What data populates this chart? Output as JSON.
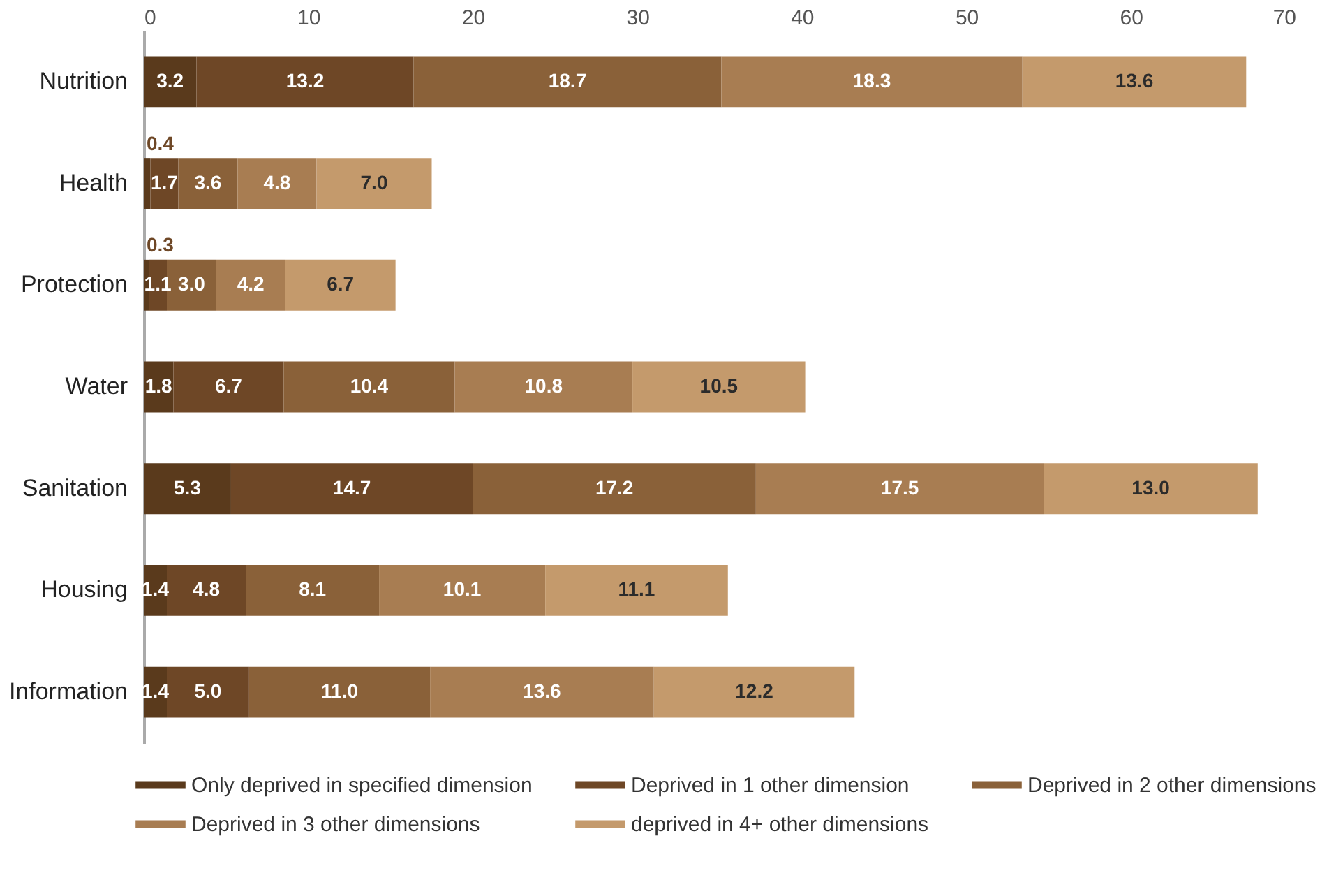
{
  "chart_data": {
    "type": "bar",
    "orientation": "horizontal",
    "stacked": true,
    "categories": [
      "Nutrition",
      "Health",
      "Protection",
      "Water",
      "Sanitation",
      "Housing",
      "Information"
    ],
    "series": [
      {
        "name": "Only deprived in specified dimension",
        "color": "#5a3a1c",
        "values": [
          3.2,
          0.4,
          0.3,
          1.8,
          5.3,
          1.4,
          1.4
        ],
        "value_labels": [
          "3.2",
          "0.4",
          "0.3",
          "1.8",
          "5.3",
          "1.4",
          "1.4"
        ]
      },
      {
        "name": "Deprived in 1 other dimension",
        "color": "#6e4726",
        "values": [
          13.2,
          1.7,
          1.1,
          6.7,
          14.7,
          4.8,
          5.0
        ],
        "value_labels": [
          "13.2",
          "1.7",
          "1.1",
          "6.7",
          "14.7",
          "4.8",
          "5.0"
        ]
      },
      {
        "name": "Deprived in 2 other dimensions",
        "color": "#8a6139",
        "values": [
          18.7,
          3.6,
          3.0,
          10.4,
          17.2,
          8.1,
          11.0
        ],
        "value_labels": [
          "18.7",
          "3.6",
          "3.0",
          "10.4",
          "17.2",
          "8.1",
          "11.0"
        ]
      },
      {
        "name": "Deprived in 3 other dimensions",
        "color": "#a87d52",
        "values": [
          18.3,
          4.8,
          4.2,
          10.8,
          17.5,
          10.1,
          13.6
        ],
        "value_labels": [
          "18.3",
          "4.8",
          "4.2",
          "10.8",
          "17.5",
          "10.1",
          "13.6"
        ]
      },
      {
        "name": "deprived in 4+ other dimensions",
        "color": "#c49a6c",
        "values": [
          13.6,
          7.0,
          6.7,
          10.5,
          13.0,
          11.1,
          12.2
        ],
        "value_labels": [
          "13.6",
          "7.0",
          "6.7",
          "10.5",
          "13.0",
          "11.1",
          "12.2"
        ]
      }
    ],
    "xlim": [
      0,
      70
    ],
    "xticks": [
      0,
      10,
      20,
      30,
      40,
      50,
      60,
      70
    ],
    "legend": "bottom",
    "grid": false
  }
}
